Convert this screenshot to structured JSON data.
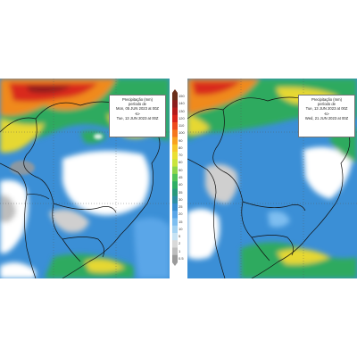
{
  "panels": [
    {
      "id": "left",
      "legend": {
        "title": "Precipitação (mm)",
        "subtitle": "período de",
        "start": "Mon, 05 JUN 2023 at 00Z",
        "sep": "-to-",
        "end": "Tue, 13 JUN 2023 at 00Z"
      }
    },
    {
      "id": "right",
      "legend": {
        "title": "Precipitação (mm)",
        "subtitle": "período de",
        "start": "Tue, 13 JUN 2023 at 00Z",
        "sep": "-to-",
        "end": "Wed, 21 JUN 2023 at 00Z"
      }
    }
  ],
  "colorbar": {
    "ticks": [
      "150",
      "140",
      "130",
      "120",
      "110",
      "100",
      "90",
      "80",
      "70",
      "60",
      "50",
      "45",
      "40",
      "35",
      "30",
      "25",
      "20",
      "15",
      "10",
      "5",
      "2",
      "1",
      "0.5"
    ],
    "colors": [
      "#6b2f1a",
      "#8c1d1d",
      "#b51a1a",
      "#d9241a",
      "#ee4a1c",
      "#f5761e",
      "#f8a21f",
      "#f7c72a",
      "#eadf32",
      "#c9e43c",
      "#8fd64a",
      "#52c45a",
      "#2fae63",
      "#2a9a7b",
      "#2e8fa5",
      "#3a8fd0",
      "#5aa6e8",
      "#7ebef0",
      "#a4d3f3",
      "#c7e3f4",
      "#d9d9d9",
      "#bdbdbd",
      "#9a9a9a"
    ]
  }
}
